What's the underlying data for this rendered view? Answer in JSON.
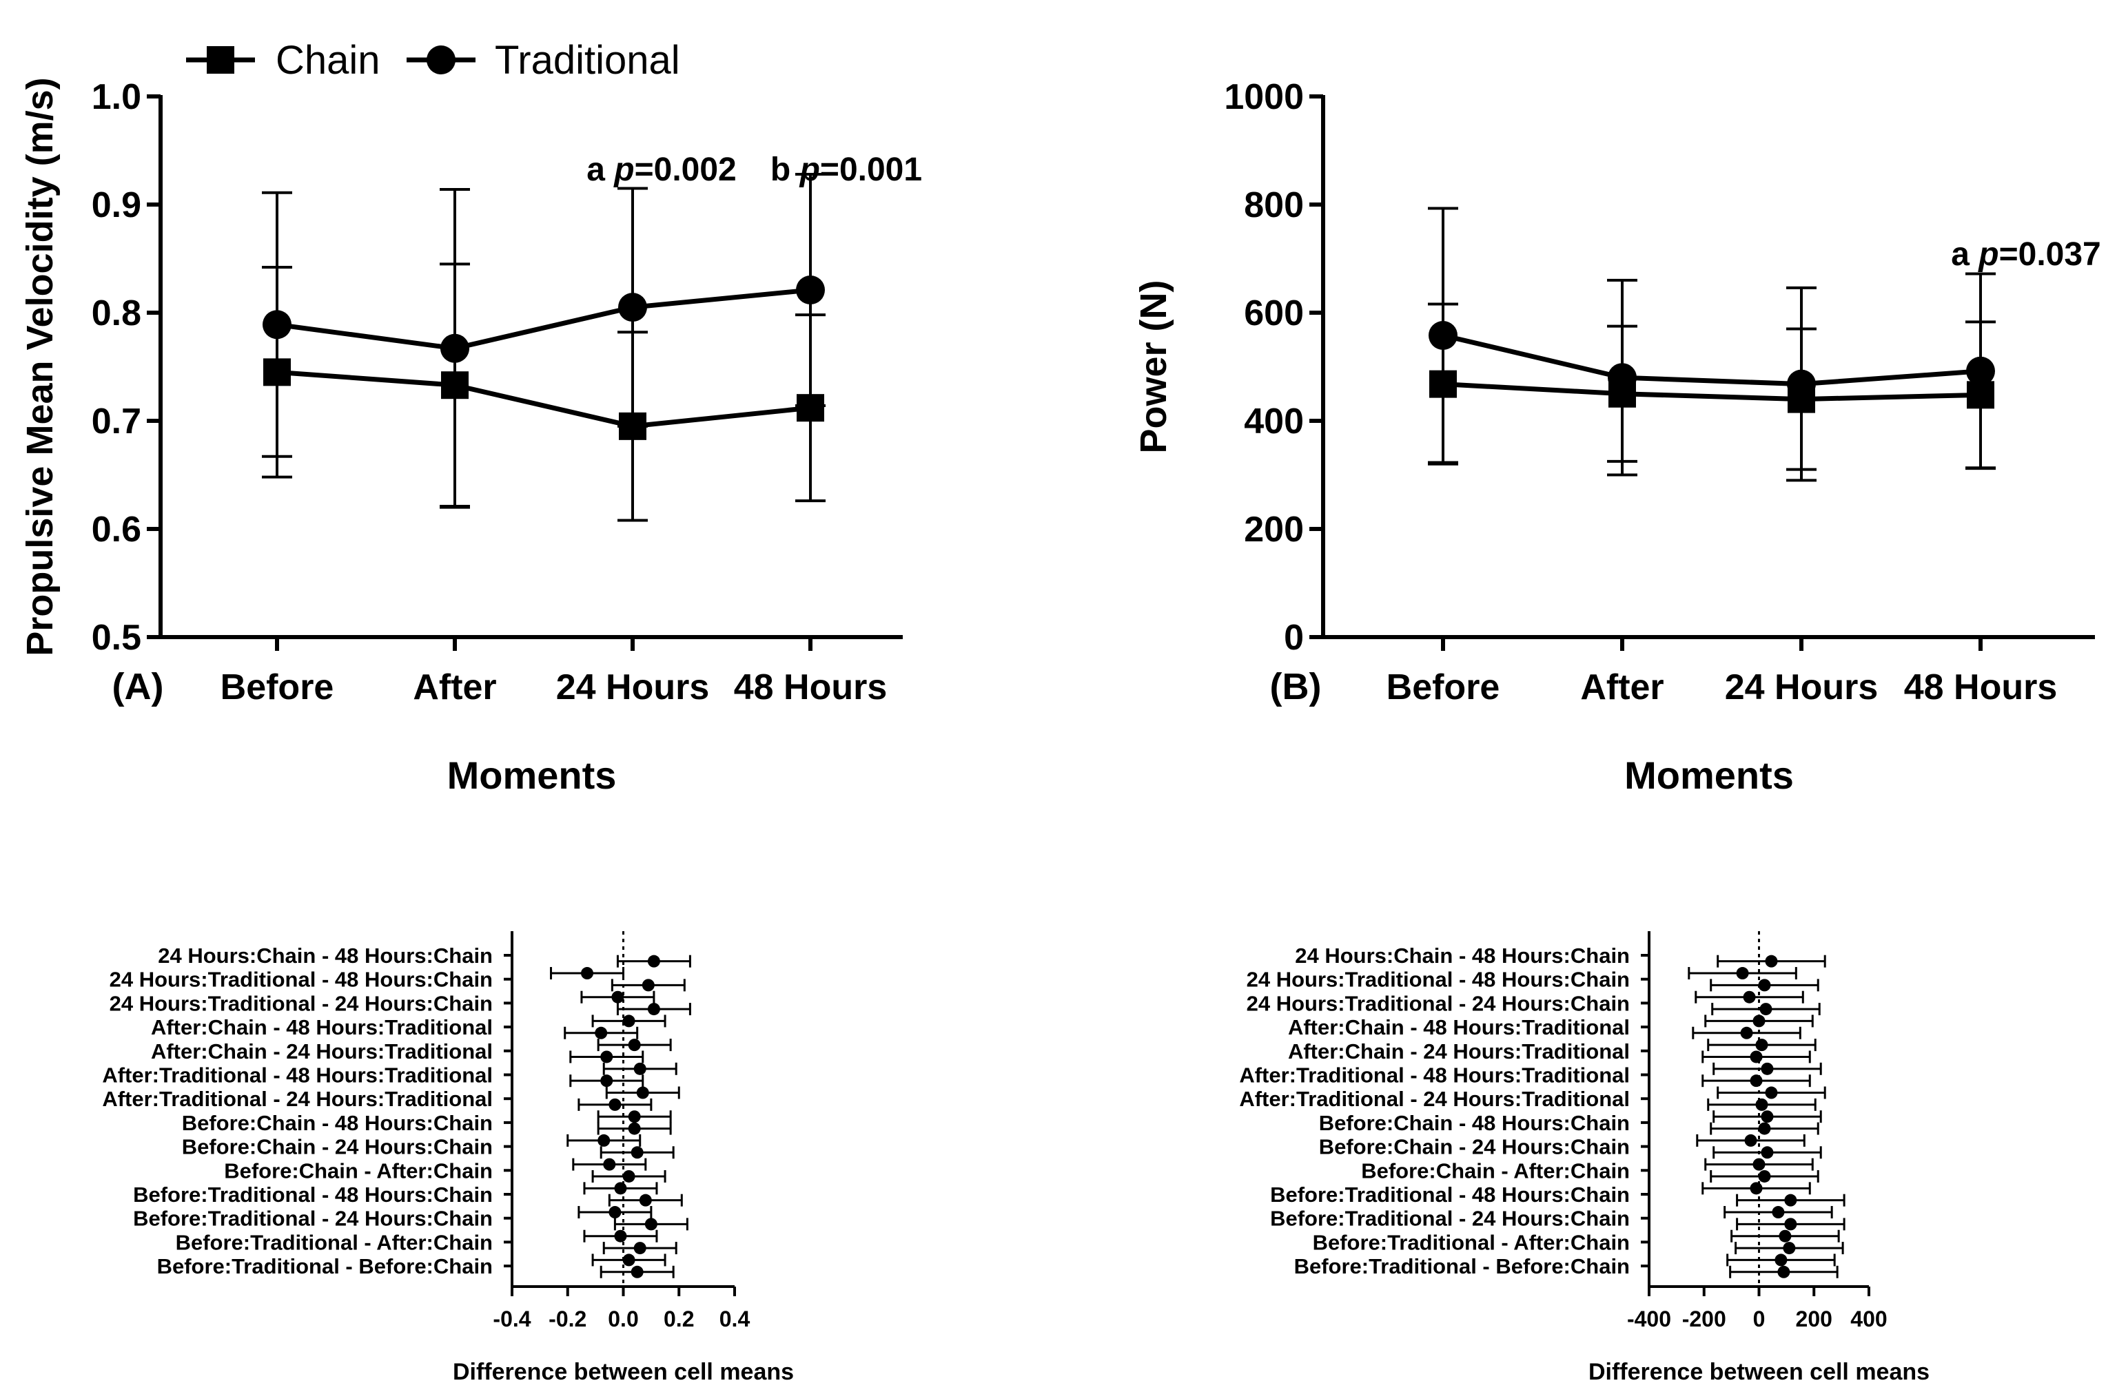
{
  "chart_data": [
    {
      "id": "A",
      "type": "line",
      "panel_label": "(A)",
      "title": "",
      "xlabel": "Moments",
      "ylabel": "Propulsive Mean Velocidity (m/s)",
      "categories": [
        "Before",
        "After",
        "24 Hours",
        "48 Hours"
      ],
      "ylim": [
        0.5,
        1.0
      ],
      "yticks": [
        0.5,
        0.6,
        0.7,
        0.8,
        0.9,
        1.0
      ],
      "ytick_labels": [
        "0.5",
        "0.6",
        "0.7",
        "0.8",
        "0.9",
        "1.0"
      ],
      "legend": {
        "placement": "top-left",
        "entries": [
          "Chain",
          "Traditional"
        ]
      },
      "series": [
        {
          "name": "Chain",
          "marker": "square",
          "values": [
            0.745,
            0.733,
            0.695,
            0.712
          ],
          "err": [
            0.097,
            0.112,
            0.087,
            0.086
          ]
        },
        {
          "name": "Traditional",
          "marker": "circle",
          "values": [
            0.789,
            0.767,
            0.805,
            0.821
          ],
          "err": [
            0.122,
            0.147,
            0.11,
            0.107
          ]
        }
      ],
      "annotations": [
        {
          "prefix": "a ",
          "p_symbol": "p",
          "text": "=0.002",
          "category": "24 Hours"
        },
        {
          "prefix": "b ",
          "p_symbol": "p",
          "text": "=0.001",
          "category": "48 Hours"
        }
      ]
    },
    {
      "id": "B",
      "type": "line",
      "panel_label": "(B)",
      "title": "",
      "xlabel": "Moments",
      "ylabel": "Power (N)",
      "categories": [
        "Before",
        "After",
        "24 Hours",
        "48 Hours"
      ],
      "ylim": [
        0,
        1000
      ],
      "yticks": [
        0,
        200,
        400,
        600,
        800,
        1000
      ],
      "ytick_labels": [
        "0",
        "200",
        "400",
        "600",
        "800",
        "1000"
      ],
      "series": [
        {
          "name": "Chain",
          "marker": "square",
          "values": [
            468,
            450,
            440,
            448
          ],
          "err": [
            148,
            125,
            130,
            135
          ]
        },
        {
          "name": "Traditional",
          "marker": "circle",
          "values": [
            558,
            480,
            468,
            492
          ],
          "err": [
            235,
            180,
            178,
            180
          ]
        }
      ],
      "annotations": [
        {
          "prefix": "a ",
          "p_symbol": "p",
          "text": "=0.037",
          "category": "48 Hours"
        }
      ]
    },
    {
      "id": "C",
      "type": "scatter",
      "title": "",
      "xlabel": "Difference between cell means",
      "ylabel": "",
      "xlim": [
        -0.4,
        0.4
      ],
      "xticks": [
        -0.4,
        -0.2,
        0.0,
        0.2,
        0.4
      ],
      "xtick_labels": [
        "-0.4",
        "-0.2",
        "0.0",
        "0.2",
        "0.4"
      ],
      "comparisons": [
        "24 Hours:Chain - 48 Hours:Chain",
        "24 Hours:Traditional - 48 Hours:Chain",
        "24 Hours:Traditional - 24 Hours:Chain",
        "After:Chain - 48 Hours:Traditional",
        "After:Chain - 24 Hours:Traditional",
        "After:Traditional - 48 Hours:Traditional",
        "After:Traditional - 24 Hours:Traditional",
        "Before:Chain - 48 Hours:Chain",
        "Before:Chain - 24 Hours:Chain",
        "Before:Chain - After:Chain",
        "Before:Traditional - 48 Hours:Chain",
        "Before:Traditional - 24 Hours:Chain",
        "Before:Traditional - After:Chain",
        "Before:Traditional - Before:Chain"
      ],
      "points": [
        {
          "rows": [
            0,
            0.5
          ],
          "value": 0.11,
          "lo": -0.02,
          "hi": 0.24
        },
        {
          "rows": [
            0.5,
            1
          ],
          "value": -0.13,
          "lo": -0.26,
          "hi": 0.0
        },
        {
          "rows": [
            1,
            1.5
          ],
          "value": 0.09,
          "lo": -0.04,
          "hi": 0.22
        },
        {
          "rows": [
            1.5,
            2
          ],
          "value": -0.02,
          "lo": -0.15,
          "hi": 0.11
        },
        {
          "rows": [
            2,
            2.5
          ],
          "value": 0.11,
          "lo": -0.02,
          "hi": 0.24
        },
        {
          "rows": [
            2.5,
            3
          ],
          "value": 0.02,
          "lo": -0.11,
          "hi": 0.15
        },
        {
          "rows": [
            3,
            3.5
          ],
          "value": -0.08,
          "lo": -0.21,
          "hi": 0.05
        },
        {
          "rows": [
            3.5,
            4
          ],
          "value": 0.04,
          "lo": -0.09,
          "hi": 0.17
        },
        {
          "rows": [
            4,
            4.5
          ],
          "value": -0.06,
          "lo": -0.19,
          "hi": 0.07
        },
        {
          "rows": [
            4.5,
            5
          ],
          "value": 0.06,
          "lo": -0.07,
          "hi": 0.19
        },
        {
          "rows": [
            5,
            5.5
          ],
          "value": -0.06,
          "lo": -0.19,
          "hi": 0.07
        },
        {
          "rows": [
            5.5,
            6
          ],
          "value": 0.07,
          "lo": -0.06,
          "hi": 0.2
        },
        {
          "rows": [
            6,
            6.5
          ],
          "value": -0.03,
          "lo": -0.16,
          "hi": 0.1
        },
        {
          "rows": [
            6.5,
            7
          ],
          "value": 0.04,
          "lo": -0.09,
          "hi": 0.17
        },
        {
          "rows": [
            7,
            7.5
          ],
          "value": 0.04,
          "lo": -0.09,
          "hi": 0.17
        },
        {
          "rows": [
            7.5,
            8
          ],
          "value": -0.07,
          "lo": -0.2,
          "hi": 0.06
        },
        {
          "rows": [
            8,
            8.5
          ],
          "value": 0.05,
          "lo": -0.08,
          "hi": 0.18
        },
        {
          "rows": [
            8.5,
            9
          ],
          "value": -0.05,
          "lo": -0.18,
          "hi": 0.08
        },
        {
          "rows": [
            9,
            9.5
          ],
          "value": 0.02,
          "lo": -0.11,
          "hi": 0.15
        },
        {
          "rows": [
            9.5,
            10
          ],
          "value": -0.01,
          "lo": -0.14,
          "hi": 0.12
        },
        {
          "rows": [
            10,
            10.5
          ],
          "value": 0.08,
          "lo": -0.05,
          "hi": 0.21
        },
        {
          "rows": [
            10.5,
            11
          ],
          "value": -0.03,
          "lo": -0.16,
          "hi": 0.1
        },
        {
          "rows": [
            11,
            11.5
          ],
          "value": 0.1,
          "lo": -0.03,
          "hi": 0.23
        },
        {
          "rows": [
            11.5,
            12
          ],
          "value": -0.01,
          "lo": -0.14,
          "hi": 0.12
        },
        {
          "rows": [
            12,
            12.5
          ],
          "value": 0.06,
          "lo": -0.07,
          "hi": 0.19
        },
        {
          "rows": [
            12.5,
            13
          ],
          "value": 0.02,
          "lo": -0.11,
          "hi": 0.15
        },
        {
          "rows": [
            13,
            13.5
          ],
          "value": 0.05,
          "lo": -0.08,
          "hi": 0.18
        }
      ]
    },
    {
      "id": "D",
      "type": "scatter",
      "title": "",
      "xlabel": "Difference between cell means",
      "ylabel": "",
      "xlim": [
        -400,
        400
      ],
      "xticks": [
        -400,
        -200,
        0,
        200,
        400
      ],
      "xtick_labels": [
        "-400",
        "-200",
        "0",
        "200",
        "400"
      ],
      "comparisons": [
        "24 Hours:Chain - 48 Hours:Chain",
        "24 Hours:Traditional - 48 Hours:Chain",
        "24 Hours:Traditional - 24 Hours:Chain",
        "After:Chain - 48 Hours:Traditional",
        "After:Chain - 24 Hours:Traditional",
        "After:Traditional - 48 Hours:Traditional",
        "After:Traditional - 24 Hours:Traditional",
        "Before:Chain - 48 Hours:Chain",
        "Before:Chain - 24 Hours:Chain",
        "Before:Chain - After:Chain",
        "Before:Traditional - 48 Hours:Chain",
        "Before:Traditional - 24 Hours:Chain",
        "Before:Traditional - After:Chain",
        "Before:Traditional - Before:Chain"
      ],
      "points": [
        {
          "rows": [
            0,
            0.5
          ],
          "value": 45,
          "lo": -150,
          "hi": 240
        },
        {
          "rows": [
            0.5,
            1
          ],
          "value": -60,
          "lo": -255,
          "hi": 135
        },
        {
          "rows": [
            1,
            1.5
          ],
          "value": 20,
          "lo": -175,
          "hi": 215
        },
        {
          "rows": [
            1.5,
            2
          ],
          "value": -35,
          "lo": -230,
          "hi": 160
        },
        {
          "rows": [
            2,
            2.5
          ],
          "value": 25,
          "lo": -170,
          "hi": 220
        },
        {
          "rows": [
            2.5,
            3
          ],
          "value": 0,
          "lo": -195,
          "hi": 195
        },
        {
          "rows": [
            3,
            3.5
          ],
          "value": -45,
          "lo": -240,
          "hi": 150
        },
        {
          "rows": [
            3.5,
            4
          ],
          "value": 10,
          "lo": -185,
          "hi": 205
        },
        {
          "rows": [
            4,
            4.5
          ],
          "value": -10,
          "lo": -205,
          "hi": 185
        },
        {
          "rows": [
            4.5,
            5
          ],
          "value": 30,
          "lo": -165,
          "hi": 225
        },
        {
          "rows": [
            5,
            5.5
          ],
          "value": -10,
          "lo": -205,
          "hi": 185
        },
        {
          "rows": [
            5.5,
            6
          ],
          "value": 45,
          "lo": -150,
          "hi": 240
        },
        {
          "rows": [
            6,
            6.5
          ],
          "value": 10,
          "lo": -185,
          "hi": 205
        },
        {
          "rows": [
            6.5,
            7
          ],
          "value": 30,
          "lo": -165,
          "hi": 225
        },
        {
          "rows": [
            7,
            7.5
          ],
          "value": 20,
          "lo": -175,
          "hi": 215
        },
        {
          "rows": [
            7.5,
            8
          ],
          "value": -30,
          "lo": -225,
          "hi": 165
        },
        {
          "rows": [
            8,
            8.5
          ],
          "value": 30,
          "lo": -165,
          "hi": 225
        },
        {
          "rows": [
            8.5,
            9
          ],
          "value": 0,
          "lo": -195,
          "hi": 195
        },
        {
          "rows": [
            9,
            9.5
          ],
          "value": 20,
          "lo": -175,
          "hi": 215
        },
        {
          "rows": [
            9.5,
            10
          ],
          "value": -10,
          "lo": -205,
          "hi": 185
        },
        {
          "rows": [
            10,
            10.5
          ],
          "value": 115,
          "lo": -80,
          "hi": 310
        },
        {
          "rows": [
            10.5,
            11
          ],
          "value": 70,
          "lo": -125,
          "hi": 265
        },
        {
          "rows": [
            11,
            11.5
          ],
          "value": 115,
          "lo": -80,
          "hi": 310
        },
        {
          "rows": [
            11.5,
            12
          ],
          "value": 95,
          "lo": -100,
          "hi": 290
        },
        {
          "rows": [
            12,
            12.5
          ],
          "value": 110,
          "lo": -85,
          "hi": 305
        },
        {
          "rows": [
            12.5,
            13
          ],
          "value": 80,
          "lo": -115,
          "hi": 275
        },
        {
          "rows": [
            13,
            13.5
          ],
          "value": 90,
          "lo": -105,
          "hi": 285
        }
      ]
    }
  ]
}
